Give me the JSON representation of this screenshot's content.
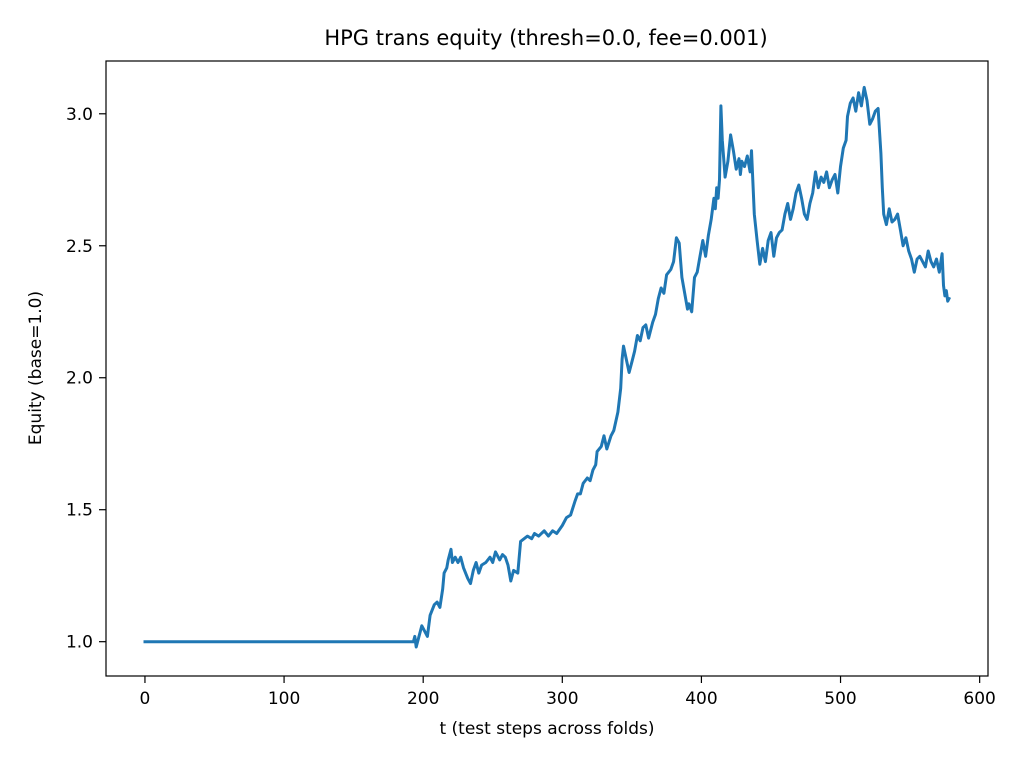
{
  "chart_data": {
    "type": "line",
    "title": "HPG trans equity (thresh=0.0, fee=0.001)",
    "xlabel": "t (test steps across folds)",
    "ylabel": "Equity (base=1.0)",
    "xlim": [
      -28,
      606
    ],
    "ylim": [
      0.87,
      3.2
    ],
    "xticks": [
      0,
      100,
      200,
      300,
      400,
      500,
      600
    ],
    "xtick_labels": [
      "0",
      "100",
      "200",
      "300",
      "400",
      "500",
      "600"
    ],
    "yticks": [
      1.0,
      1.5,
      2.0,
      2.5,
      3.0
    ],
    "ytick_labels": [
      "1.0",
      "1.5",
      "2.0",
      "2.5",
      "3.0"
    ],
    "grid": false,
    "color": "#1f77b4",
    "series": [
      {
        "x": [
          0,
          193,
          194,
          195,
          197,
          199,
          201,
          203,
          205,
          208,
          210,
          212,
          214,
          215,
          217,
          218,
          220,
          221,
          223,
          225,
          227,
          229,
          232,
          234,
          236,
          238,
          240,
          242,
          245,
          248,
          250,
          252,
          255,
          257,
          259,
          261,
          263,
          265,
          268,
          270,
          275,
          278,
          280,
          283,
          287,
          290,
          293,
          296,
          300,
          303,
          306,
          309,
          311,
          313,
          315,
          318,
          320,
          322,
          324,
          325,
          328,
          330,
          332,
          335,
          337,
          340,
          342,
          343,
          344,
          346,
          348,
          350,
          352,
          354,
          356,
          358,
          360,
          362,
          365,
          367,
          369,
          371,
          373,
          375,
          378,
          380,
          382,
          384,
          386,
          388,
          390,
          391,
          393,
          395,
          397,
          399,
          401,
          403,
          405,
          407,
          409,
          410,
          411,
          412,
          413,
          414,
          415,
          416,
          417,
          419,
          421,
          423,
          425,
          427,
          428,
          429,
          431,
          433,
          435,
          436,
          438,
          440,
          442,
          444,
          446,
          448,
          450,
          452,
          454,
          456,
          458,
          460,
          462,
          464,
          466,
          468,
          470,
          472,
          474,
          476,
          478,
          480,
          482,
          484,
          486,
          488,
          490,
          492,
          494,
          496,
          498,
          500,
          502,
          504,
          505,
          507,
          509,
          511,
          513,
          515,
          517,
          519,
          521,
          523,
          525,
          527,
          529,
          530,
          531,
          533,
          535,
          537,
          539,
          541,
          543,
          545,
          547,
          549,
          551,
          553,
          555,
          557,
          559,
          561,
          563,
          565,
          567,
          569,
          571,
          573,
          574,
          575,
          576,
          577,
          578
        ],
        "values": [
          1.0,
          1.0,
          1.02,
          0.98,
          1.02,
          1.06,
          1.04,
          1.02,
          1.1,
          1.14,
          1.15,
          1.13,
          1.2,
          1.26,
          1.28,
          1.31,
          1.35,
          1.3,
          1.32,
          1.3,
          1.32,
          1.28,
          1.24,
          1.22,
          1.27,
          1.3,
          1.26,
          1.29,
          1.3,
          1.32,
          1.3,
          1.34,
          1.31,
          1.33,
          1.32,
          1.29,
          1.23,
          1.27,
          1.26,
          1.38,
          1.4,
          1.39,
          1.41,
          1.4,
          1.42,
          1.4,
          1.42,
          1.41,
          1.44,
          1.47,
          1.48,
          1.53,
          1.56,
          1.56,
          1.6,
          1.62,
          1.61,
          1.65,
          1.67,
          1.72,
          1.74,
          1.78,
          1.73,
          1.78,
          1.8,
          1.87,
          1.96,
          2.07,
          2.12,
          2.07,
          2.02,
          2.06,
          2.1,
          2.16,
          2.14,
          2.19,
          2.2,
          2.15,
          2.21,
          2.24,
          2.3,
          2.34,
          2.32,
          2.39,
          2.41,
          2.44,
          2.53,
          2.51,
          2.38,
          2.32,
          2.26,
          2.28,
          2.25,
          2.38,
          2.4,
          2.46,
          2.52,
          2.46,
          2.54,
          2.6,
          2.68,
          2.64,
          2.72,
          2.68,
          2.75,
          3.03,
          2.9,
          2.83,
          2.76,
          2.82,
          2.92,
          2.86,
          2.79,
          2.83,
          2.77,
          2.82,
          2.8,
          2.84,
          2.78,
          2.86,
          2.62,
          2.52,
          2.43,
          2.49,
          2.44,
          2.52,
          2.55,
          2.46,
          2.53,
          2.55,
          2.56,
          2.62,
          2.66,
          2.6,
          2.64,
          2.7,
          2.73,
          2.68,
          2.62,
          2.6,
          2.66,
          2.7,
          2.78,
          2.72,
          2.76,
          2.74,
          2.78,
          2.72,
          2.75,
          2.77,
          2.7,
          2.8,
          2.87,
          2.9,
          2.99,
          3.04,
          3.06,
          3.01,
          3.08,
          3.03,
          3.1,
          3.05,
          2.96,
          2.98,
          3.01,
          3.02,
          2.85,
          2.72,
          2.62,
          2.58,
          2.64,
          2.59,
          2.6,
          2.62,
          2.56,
          2.5,
          2.53,
          2.48,
          2.45,
          2.4,
          2.45,
          2.46,
          2.44,
          2.42,
          2.48,
          2.44,
          2.42,
          2.45,
          2.4,
          2.47,
          2.35,
          2.31,
          2.33,
          2.29,
          2.3
        ]
      }
    ]
  }
}
